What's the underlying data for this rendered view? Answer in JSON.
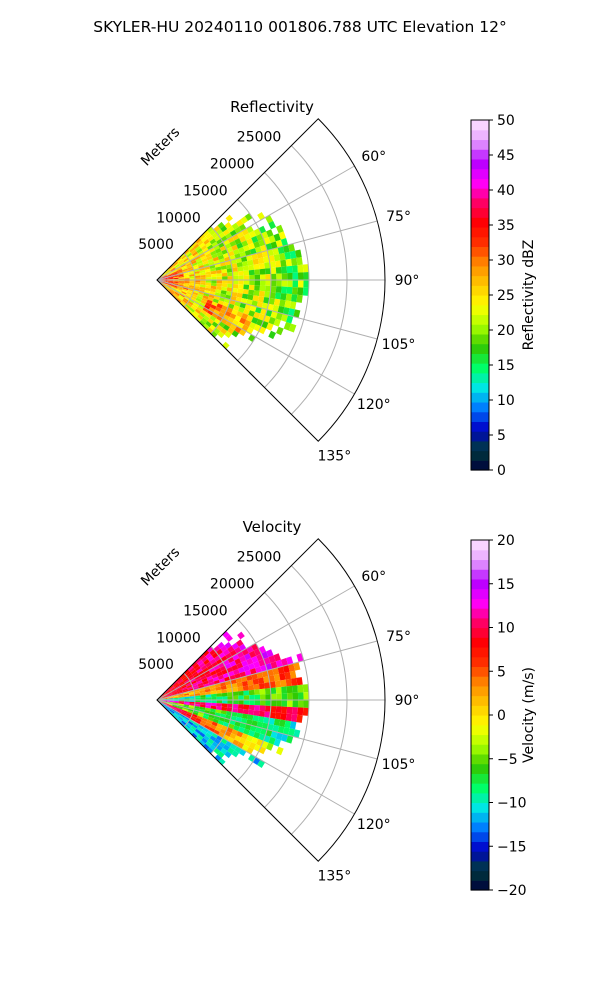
{
  "figure_title": "SKYLER-HU  20240110  001806.788 UTC Elevation 12°",
  "chart_data": [
    {
      "type": "heatmap",
      "subtype": "polar-sector",
      "title": "Reflectivity",
      "range_label": "Meters",
      "range_ticks": [
        5000,
        10000,
        15000,
        20000,
        25000
      ],
      "range_max": 30000,
      "angle_ticks": [
        "60°",
        "75°",
        "90°",
        "105°",
        "120°",
        "135°"
      ],
      "angle_values": [
        60,
        75,
        90,
        105,
        120,
        135
      ],
      "sector_deg": [
        45,
        135
      ],
      "data_extent_m": 20000,
      "colorbar": {
        "label": "Reflectivity dBZ",
        "min": 0,
        "max": 50,
        "ticks": [
          "0",
          "5",
          "10",
          "15",
          "20",
          "25",
          "30",
          "35",
          "40",
          "45",
          "50"
        ]
      },
      "pattern": "reflectivity"
    },
    {
      "type": "heatmap",
      "subtype": "polar-sector",
      "title": "Velocity",
      "range_label": "Meters",
      "range_ticks": [
        5000,
        10000,
        15000,
        20000,
        25000
      ],
      "range_max": 30000,
      "angle_ticks": [
        "60°",
        "75°",
        "90°",
        "105°",
        "120°",
        "135°"
      ],
      "angle_values": [
        60,
        75,
        90,
        105,
        120,
        135
      ],
      "sector_deg": [
        45,
        135
      ],
      "data_extent_m": 20000,
      "colorbar": {
        "label": "Velocity (m/s)",
        "min": -20,
        "max": 20,
        "ticks": [
          "−20",
          "−15",
          "−10",
          "−5",
          "0",
          "5",
          "10",
          "15",
          "20"
        ]
      },
      "pattern": "velocity"
    }
  ],
  "colors": {
    "colormap_stops": [
      "#00003c",
      "#003c3c",
      "#0000c8",
      "#0078ff",
      "#00e6e6",
      "#00ff64",
      "#32c800",
      "#aaff00",
      "#ffff00",
      "#ffc800",
      "#ff8c00",
      "#ff3200",
      "#ff0000",
      "#ff0064",
      "#ff00ff",
      "#b400ff",
      "#e6a0ff",
      "#ffe6ff"
    ],
    "grid": "#b0b0b0"
  }
}
